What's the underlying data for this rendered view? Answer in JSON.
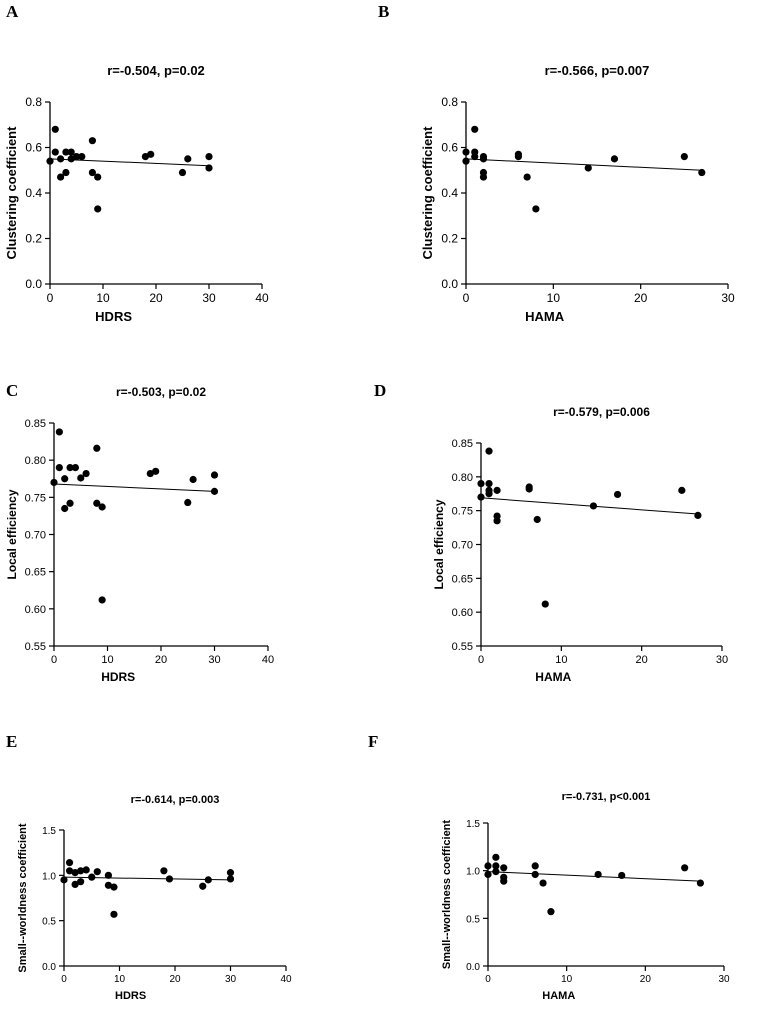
{
  "chart_data": [
    {
      "panel": "A",
      "type": "scatter",
      "title": "r=-0.504, p=0.02",
      "xlabel": "HDRS",
      "ylabel": "Clustering coefficient",
      "xlim": [
        0,
        40
      ],
      "ylim": [
        0,
        0.8
      ],
      "xticks": [
        0,
        10,
        20,
        30,
        40
      ],
      "yticks": [
        0.0,
        0.2,
        0.4,
        0.6,
        0.8
      ],
      "ytick_decimals": 1,
      "grid": false,
      "points": [
        [
          0,
          0.54
        ],
        [
          1,
          0.68
        ],
        [
          1,
          0.58
        ],
        [
          2,
          0.55
        ],
        [
          2,
          0.47
        ],
        [
          3,
          0.58
        ],
        [
          3,
          0.49
        ],
        [
          4,
          0.58
        ],
        [
          4,
          0.55
        ],
        [
          5,
          0.56
        ],
        [
          6,
          0.56
        ],
        [
          8,
          0.63
        ],
        [
          8,
          0.49
        ],
        [
          9,
          0.47
        ],
        [
          9,
          0.33
        ],
        [
          18,
          0.56
        ],
        [
          19,
          0.57
        ],
        [
          25,
          0.49
        ],
        [
          26,
          0.55
        ],
        [
          30,
          0.56
        ],
        [
          30,
          0.51
        ]
      ],
      "fit_line": [
        [
          0,
          0.55
        ],
        [
          30,
          0.52
        ]
      ]
    },
    {
      "panel": "B",
      "type": "scatter",
      "title": "r=-0.566, p=0.007",
      "xlabel": "HAMA",
      "ylabel": "Clustering coefficient",
      "xlim": [
        0,
        30
      ],
      "ylim": [
        0,
        0.8
      ],
      "xticks": [
        0,
        10,
        20,
        30
      ],
      "yticks": [
        0.0,
        0.2,
        0.4,
        0.6,
        0.8
      ],
      "ytick_decimals": 1,
      "grid": false,
      "points": [
        [
          0,
          0.58
        ],
        [
          0,
          0.54
        ],
        [
          1,
          0.68
        ],
        [
          1,
          0.58
        ],
        [
          1,
          0.56
        ],
        [
          2,
          0.56
        ],
        [
          2,
          0.55
        ],
        [
          2,
          0.49
        ],
        [
          2,
          0.47
        ],
        [
          6,
          0.57
        ],
        [
          6,
          0.56
        ],
        [
          7,
          0.47
        ],
        [
          8,
          0.33
        ],
        [
          14,
          0.51
        ],
        [
          17,
          0.55
        ],
        [
          25,
          0.56
        ],
        [
          27,
          0.49
        ]
      ],
      "fit_line": [
        [
          0,
          0.55
        ],
        [
          27,
          0.5
        ]
      ]
    },
    {
      "panel": "C",
      "type": "scatter",
      "title": "r=-0.503, p=0.02",
      "xlabel": "HDRS",
      "ylabel": "Local efficiency",
      "xlim": [
        0,
        40
      ],
      "ylim": [
        0.55,
        0.85
      ],
      "xticks": [
        0,
        10,
        20,
        30,
        40
      ],
      "yticks": [
        0.55,
        0.6,
        0.65,
        0.7,
        0.75,
        0.8,
        0.85
      ],
      "ytick_decimals": 2,
      "grid": false,
      "points": [
        [
          0,
          0.77
        ],
        [
          1,
          0.838
        ],
        [
          1,
          0.79
        ],
        [
          2,
          0.775
        ],
        [
          2,
          0.735
        ],
        [
          3,
          0.79
        ],
        [
          3,
          0.742
        ],
        [
          4,
          0.79
        ],
        [
          5,
          0.776
        ],
        [
          6,
          0.782
        ],
        [
          8,
          0.816
        ],
        [
          8,
          0.742
        ],
        [
          9,
          0.737
        ],
        [
          9,
          0.612
        ],
        [
          18,
          0.782
        ],
        [
          19,
          0.785
        ],
        [
          25,
          0.743
        ],
        [
          26,
          0.774
        ],
        [
          30,
          0.78
        ],
        [
          30,
          0.758
        ]
      ],
      "fit_line": [
        [
          0,
          0.768
        ],
        [
          30,
          0.758
        ]
      ]
    },
    {
      "panel": "D",
      "type": "scatter",
      "title": "r=-0.579, p=0.006",
      "xlabel": "HAMA",
      "ylabel": "Local efficiency",
      "xlim": [
        0,
        30
      ],
      "ylim": [
        0.55,
        0.85
      ],
      "xticks": [
        0,
        10,
        20,
        30
      ],
      "yticks": [
        0.55,
        0.6,
        0.65,
        0.7,
        0.75,
        0.8,
        0.85
      ],
      "ytick_decimals": 2,
      "grid": false,
      "points": [
        [
          0,
          0.79
        ],
        [
          0,
          0.77
        ],
        [
          1,
          0.838
        ],
        [
          1,
          0.79
        ],
        [
          1,
          0.78
        ],
        [
          1,
          0.775
        ],
        [
          2,
          0.78
        ],
        [
          2,
          0.742
        ],
        [
          2,
          0.735
        ],
        [
          6,
          0.785
        ],
        [
          6,
          0.782
        ],
        [
          7,
          0.737
        ],
        [
          8,
          0.612
        ],
        [
          14,
          0.757
        ],
        [
          17,
          0.774
        ],
        [
          25,
          0.78
        ],
        [
          27,
          0.743
        ]
      ],
      "fit_line": [
        [
          0,
          0.769
        ],
        [
          27,
          0.745
        ]
      ]
    },
    {
      "panel": "E",
      "type": "scatter",
      "title": "r=-0.614, p=0.003",
      "xlabel": "HDRS",
      "ylabel": "Small--worldness coefficient",
      "xlim": [
        0,
        40
      ],
      "ylim": [
        0,
        1.5
      ],
      "xticks": [
        0,
        10,
        20,
        30,
        40
      ],
      "yticks": [
        0.0,
        0.5,
        1.0,
        1.5
      ],
      "ytick_decimals": 1,
      "grid": false,
      "points": [
        [
          0,
          0.95
        ],
        [
          1,
          1.14
        ],
        [
          1,
          1.05
        ],
        [
          2,
          1.03
        ],
        [
          2,
          0.9
        ],
        [
          3,
          1.05
        ],
        [
          3,
          0.93
        ],
        [
          4,
          1.06
        ],
        [
          5,
          0.98
        ],
        [
          6,
          1.04
        ],
        [
          8,
          1.0
        ],
        [
          8,
          0.89
        ],
        [
          9,
          0.87
        ],
        [
          9,
          0.57
        ],
        [
          18,
          1.05
        ],
        [
          19,
          0.96
        ],
        [
          25,
          0.88
        ],
        [
          26,
          0.95
        ],
        [
          30,
          1.03
        ],
        [
          30,
          0.96
        ]
      ],
      "fit_line": [
        [
          0,
          0.98
        ],
        [
          30,
          0.95
        ]
      ]
    },
    {
      "panel": "F",
      "type": "scatter",
      "title": "r=-0.731, p<0.001",
      "xlabel": "HAMA",
      "ylabel": "Small--worldness coefficient",
      "xlim": [
        0,
        30
      ],
      "ylim": [
        0,
        1.5
      ],
      "xticks": [
        0,
        10,
        20,
        30
      ],
      "yticks": [
        0.0,
        0.5,
        1.0,
        1.5
      ],
      "ytick_decimals": 1,
      "grid": false,
      "points": [
        [
          0,
          1.05
        ],
        [
          0,
          0.96
        ],
        [
          1,
          1.14
        ],
        [
          1,
          1.05
        ],
        [
          1,
          0.99
        ],
        [
          2,
          1.03
        ],
        [
          2,
          0.93
        ],
        [
          2,
          0.89
        ],
        [
          6,
          1.05
        ],
        [
          6,
          0.96
        ],
        [
          7,
          0.87
        ],
        [
          8,
          0.57
        ],
        [
          14,
          0.96
        ],
        [
          17,
          0.95
        ],
        [
          25,
          1.03
        ],
        [
          27,
          0.87
        ]
      ],
      "fit_line": [
        [
          0,
          0.99
        ],
        [
          27,
          0.89
        ]
      ]
    }
  ]
}
